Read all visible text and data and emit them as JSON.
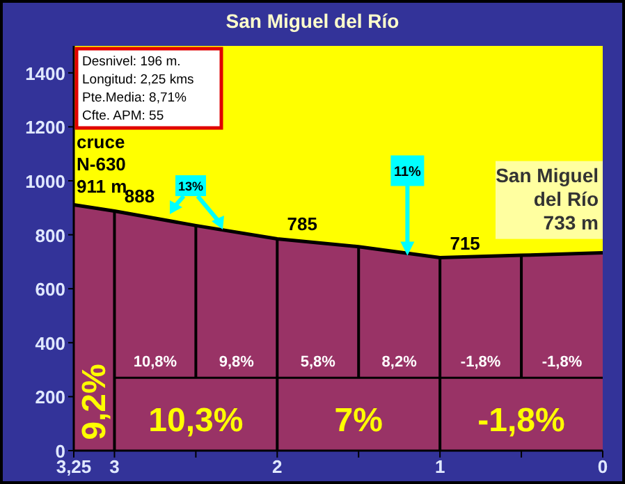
{
  "chart_data": {
    "type": "area",
    "title": "San Miguel del Río",
    "x": [
      3.25,
      3,
      2.5,
      2,
      1.5,
      1,
      0.5,
      0
    ],
    "values": [
      911,
      888,
      834,
      785,
      756,
      715,
      724,
      733
    ],
    "color": "#993366",
    "xlim": [
      3.25,
      0
    ],
    "xticks": [
      {
        "value": 3.25,
        "label": "3,25"
      },
      3,
      {
        "value": 2.5,
        "label": null
      },
      2,
      {
        "value": 1.5,
        "label": null
      },
      1,
      {
        "value": 0.5,
        "label": null
      },
      0
    ],
    "ylim": [
      0,
      1500
    ],
    "yticks": [
      0,
      200,
      400,
      600,
      800,
      1000,
      1200,
      1400
    ],
    "grid": "x",
    "ref_lines": [
      {
        "axis": "y",
        "value": 270,
        "color": "#000000"
      }
    ],
    "annotations": [
      "Desnivel: 196 m.\nLongitud: 2,25 kms\nPte.Media: 8,71%\nCfte. APM: 55",
      {
        "text": "cruce\nN-630\n911 m",
        "x": 3.25,
        "y": 911
      },
      {
        "text": "888",
        "x": 3,
        "y": 888
      },
      {
        "text": "785",
        "x": 2,
        "y": 785
      },
      {
        "text": "715",
        "x": 1,
        "y": 715
      },
      {
        "text": "San Miguel\ndel Río\n733 m",
        "x": 0,
        "y": 733
      },
      "13%",
      {
        "text": "11%",
        "x": 1.2,
        "y": 723
      },
      "9,2%",
      "10,8%",
      "9,8%",
      "5,8%",
      "8,2%",
      "-1,8%",
      "-1,8%",
      "10,3%",
      "7%",
      "-1,8%"
    ]
  }
}
